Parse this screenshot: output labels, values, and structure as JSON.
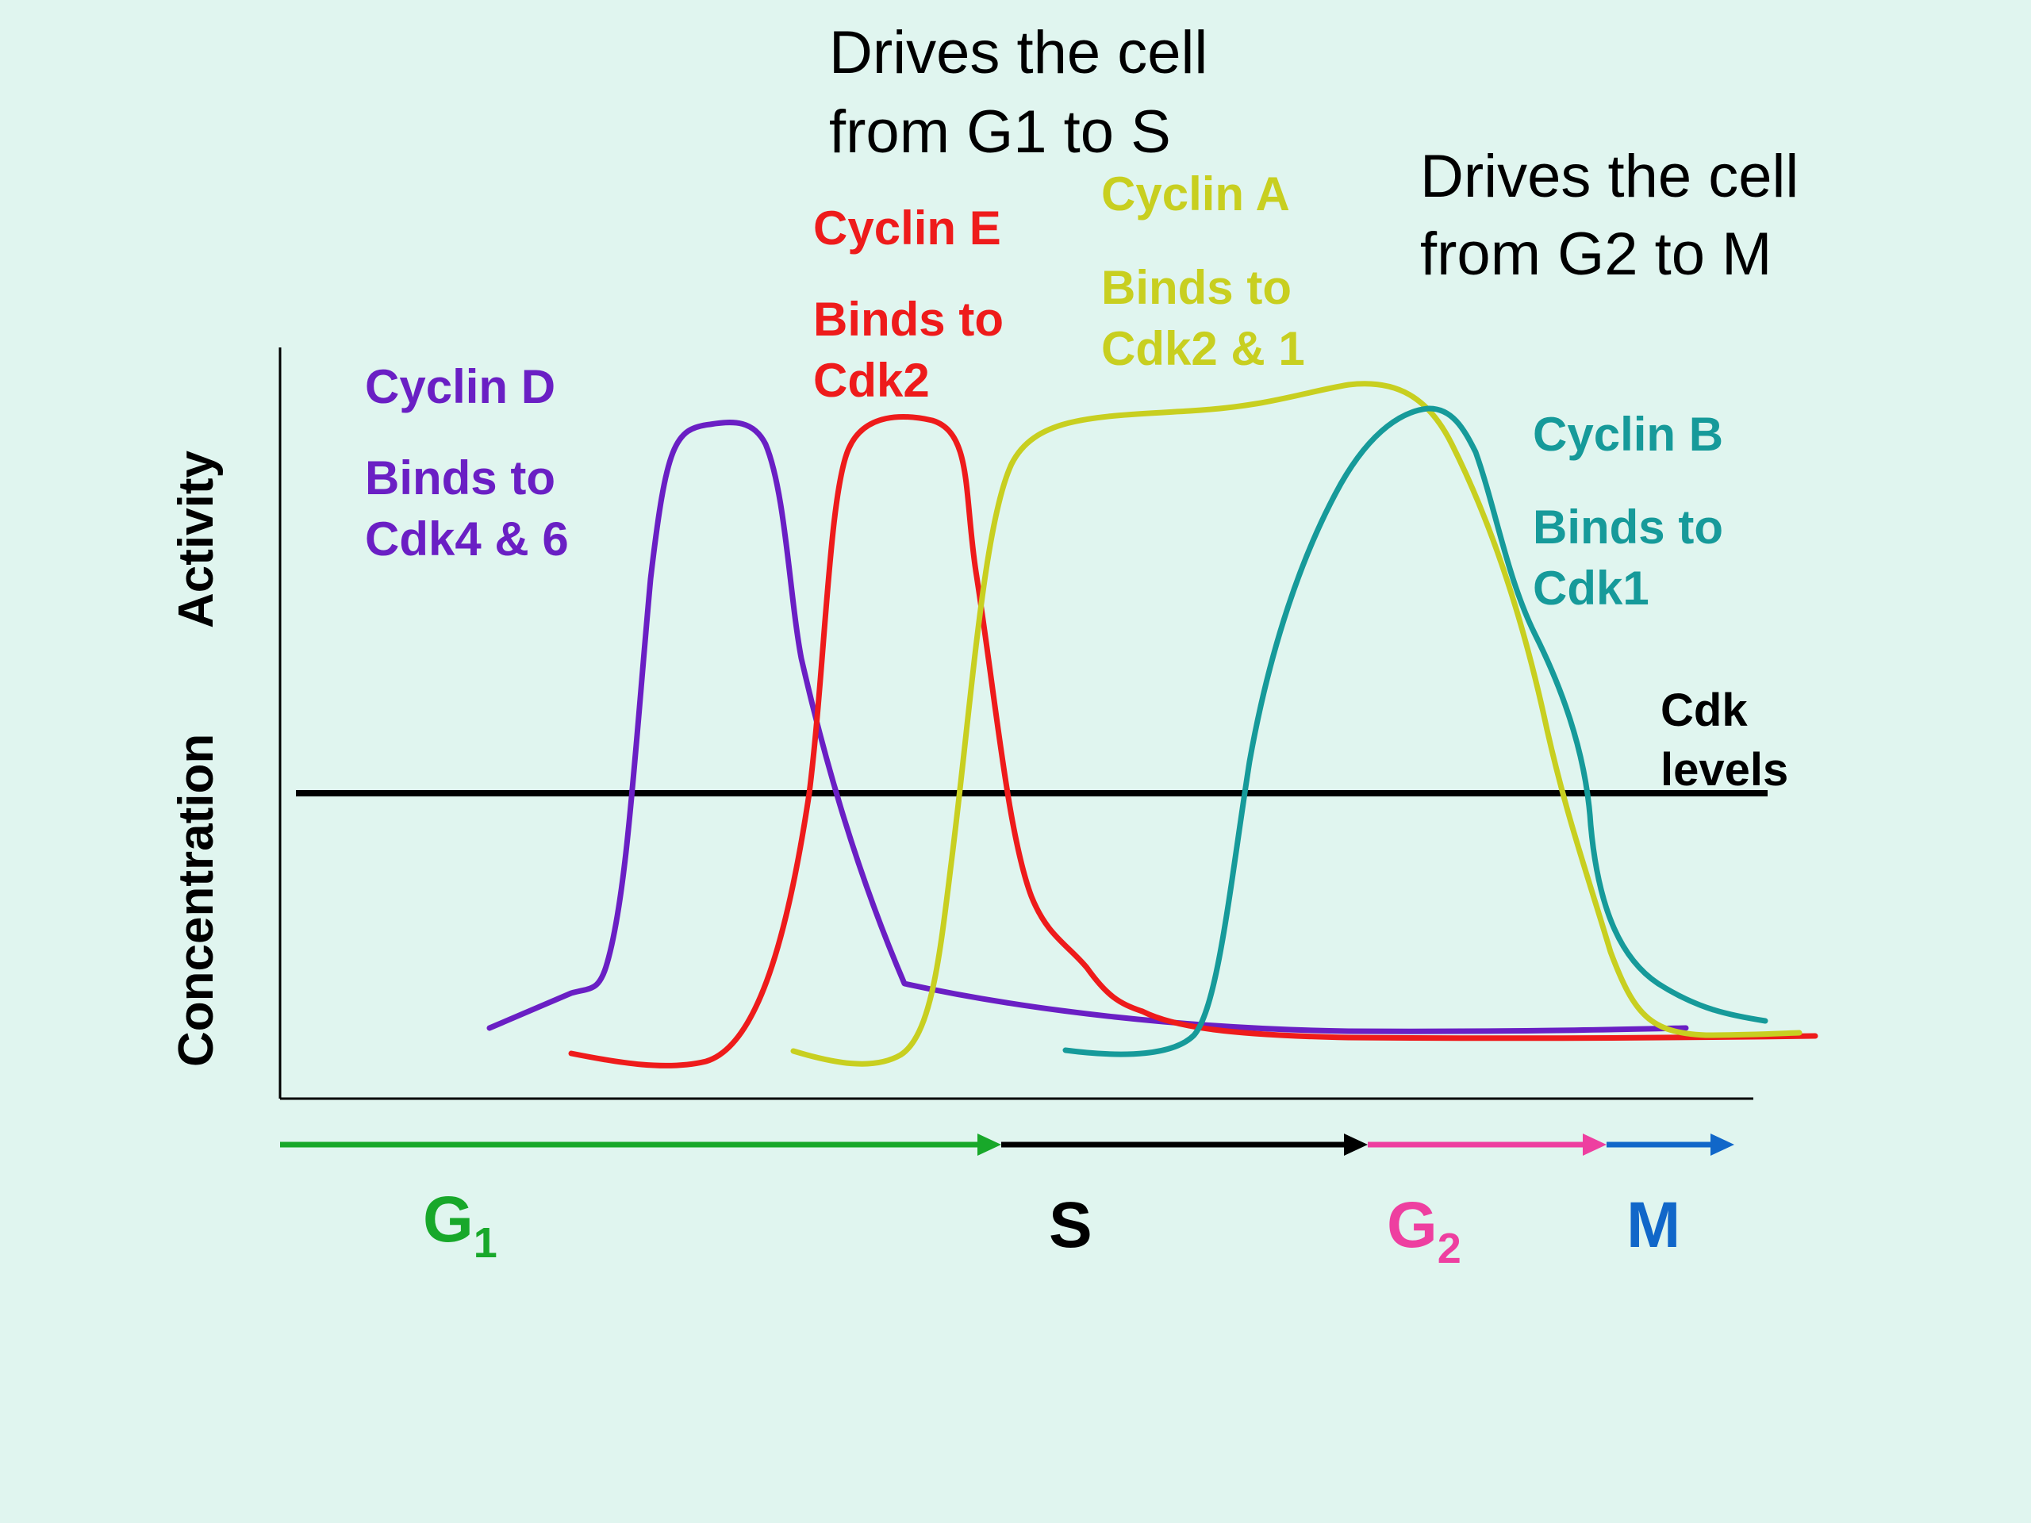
{
  "headings": {
    "g1_to_s": [
      "Drives the cell",
      "from G1 to S"
    ],
    "g2_to_m": [
      "Drives the cell",
      "from G2 to M"
    ]
  },
  "axis": {
    "y_label_left": "Concentration",
    "y_label_right": "Activity"
  },
  "cyclins": {
    "d": {
      "name": "Cyclin D",
      "binds": [
        "Binds to",
        "Cdk4 & 6"
      ],
      "color": "#6a1fc4"
    },
    "e": {
      "name": "Cyclin E",
      "binds": [
        "Binds to",
        "Cdk2"
      ],
      "color": "#ee1b1b"
    },
    "a": {
      "name": "Cyclin A",
      "binds": [
        "Binds to",
        "Cdk2 & 1"
      ],
      "color": "#c8cf20"
    },
    "b": {
      "name": "Cyclin B",
      "binds": [
        "Binds to",
        "Cdk1"
      ],
      "color": "#169a9a"
    }
  },
  "cdk": {
    "label": [
      "Cdk",
      "levels"
    ],
    "color": "#000000"
  },
  "phases": [
    {
      "key": "g1",
      "label": "G",
      "sub": "1",
      "color": "#18a82a"
    },
    {
      "key": "s",
      "label": "S",
      "sub": "",
      "color": "#000000"
    },
    {
      "key": "g2",
      "label": "G",
      "sub": "2",
      "color": "#ee3fa0"
    },
    {
      "key": "m",
      "label": "M",
      "sub": "",
      "color": "#1167c9"
    }
  ]
}
